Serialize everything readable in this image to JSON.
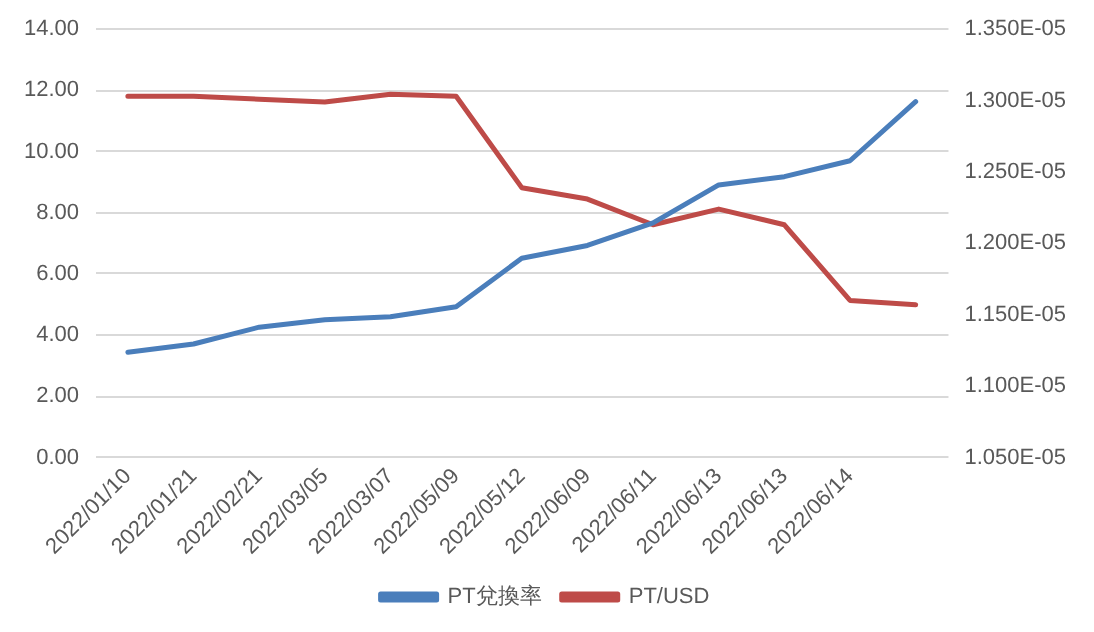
{
  "chart_data": {
    "type": "line",
    "categories": [
      "2022/01/10",
      "2022/01/21",
      "2022/02/21",
      "2022/03/05",
      "2022/03/07",
      "2022/05/09",
      "2022/05/12",
      "2022/06/09",
      "2022/06/11",
      "2022/06/13",
      "2022/06/13",
      "2022/06/14",
      null
    ],
    "series": [
      {
        "name": "PT兌換率",
        "color": "#4a7ebb",
        "values": [
          3.44,
          3.71,
          4.26,
          4.5,
          4.6,
          4.93,
          6.51,
          6.93,
          7.67,
          8.91,
          9.18,
          9.7,
          11.63
        ]
      },
      {
        "name": "PT/USD",
        "color": "#be4b48",
        "axis": "y2",
        "values": [
          1.303e-05,
          1.303e-05,
          1.301e-05,
          1.299e-05,
          1.3045e-05,
          1.303e-05,
          1.239e-05,
          1.231e-05,
          1.213e-05,
          1.224e-05,
          1.213e-05,
          1.16e-05,
          1.157e-05
        ]
      }
    ],
    "ylim": [
      0,
      14
    ],
    "yticks": [
      {
        "value": 0,
        "label": "0.00"
      },
      {
        "value": 2,
        "label": "2.00"
      },
      {
        "value": 4,
        "label": "4.00"
      },
      {
        "value": 6,
        "label": "6.00"
      },
      {
        "value": 8,
        "label": "8.00"
      },
      {
        "value": 10,
        "label": "10.00"
      },
      {
        "value": 12,
        "label": "12.00"
      },
      {
        "value": 14,
        "label": "14.00"
      }
    ],
    "y2lim": [
      1.05e-05,
      1.35e-05
    ],
    "y2ticks": [
      {
        "value": 1.05e-05,
        "label": "1.050E-05"
      },
      {
        "value": 1.1e-05,
        "label": "1.100E-05"
      },
      {
        "value": 1.15e-05,
        "label": "1.150E-05"
      },
      {
        "value": 1.2e-05,
        "label": "1.200E-05"
      },
      {
        "value": 1.25e-05,
        "label": "1.250E-05"
      },
      {
        "value": 1.3e-05,
        "label": "1.300E-05"
      },
      {
        "value": 1.35e-05,
        "label": "1.350E-05"
      }
    ],
    "grid": "y",
    "legend": "bottom",
    "marker": "none",
    "line_style": "solid"
  }
}
